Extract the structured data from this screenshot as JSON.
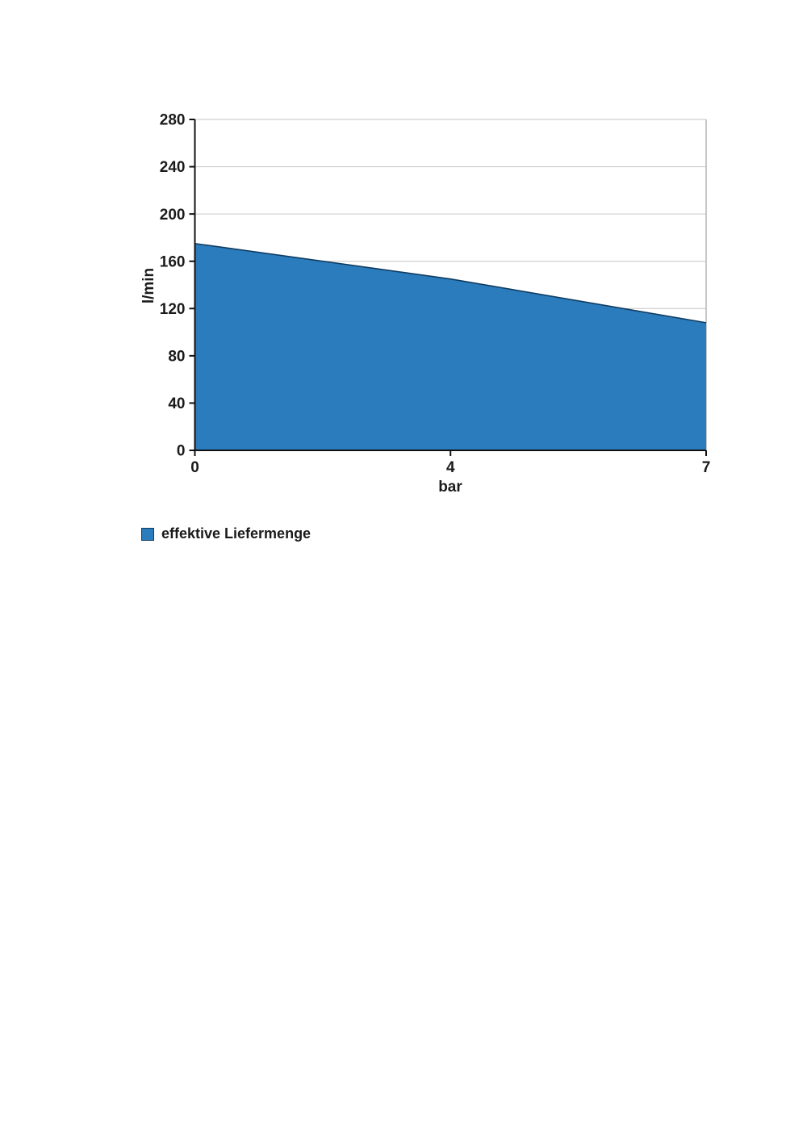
{
  "chart_data": {
    "type": "area",
    "categories": [
      "0",
      "4",
      "7"
    ],
    "series": [
      {
        "name": "effektive Liefermenge",
        "values": [
          175,
          145,
          108
        ]
      }
    ],
    "title": "",
    "xlabel": "bar",
    "ylabel": "l/min",
    "ylim": [
      0,
      280
    ],
    "yticks": [
      0,
      40,
      80,
      120,
      160,
      200,
      240,
      280
    ],
    "grid": "horizontal-only",
    "legend_position": "bottom-left",
    "colors": {
      "area_fill": "#2b7cbd",
      "area_stroke": "#0f3c61",
      "gridline": "#c6c6c6",
      "plot_border": "#b5b5b5",
      "axis": "#111111",
      "text": "#1a1a1a",
      "background": "#ffffff"
    }
  }
}
